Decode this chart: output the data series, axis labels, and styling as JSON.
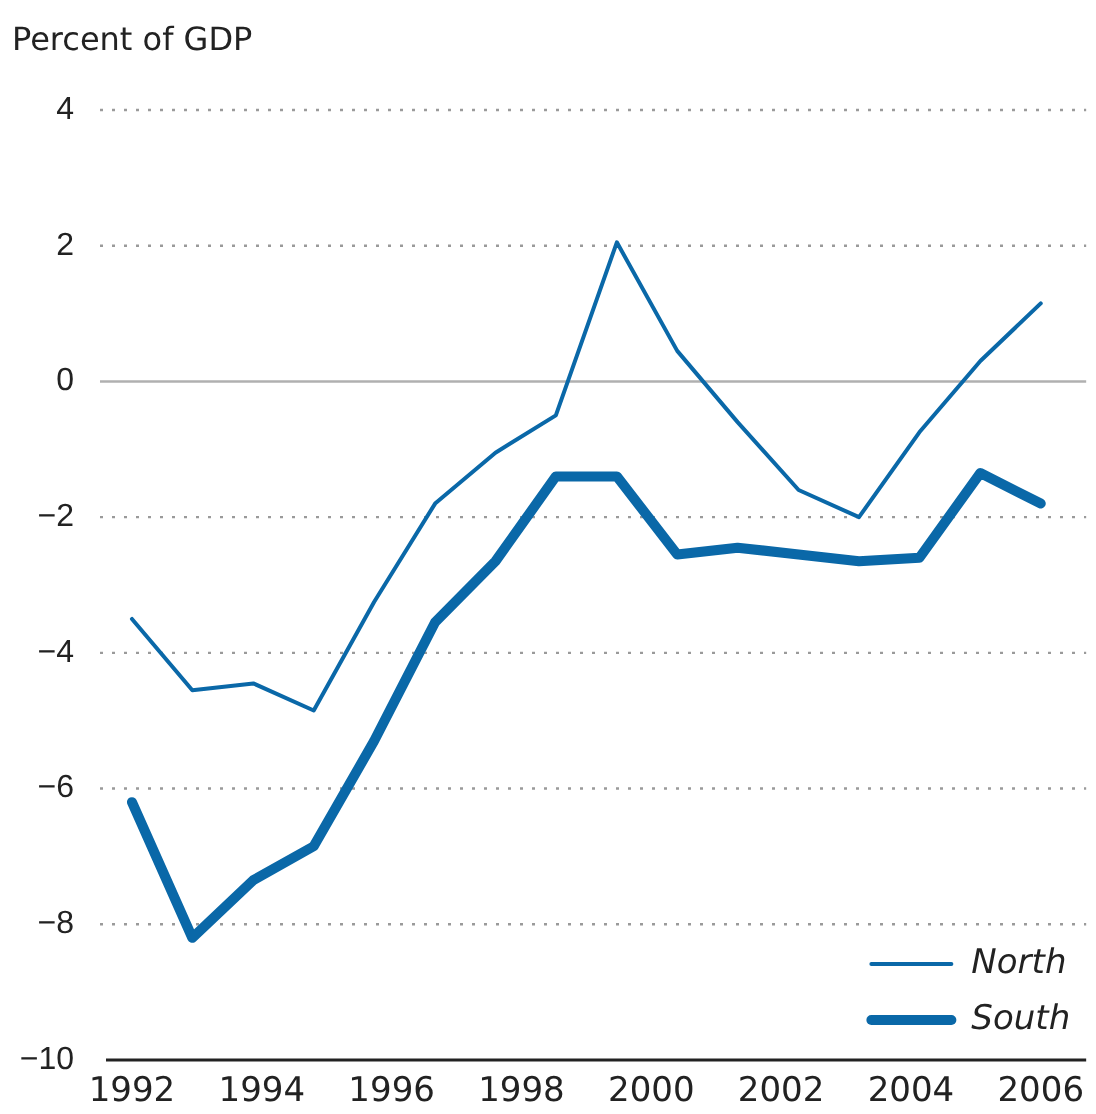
{
  "chart_data": {
    "type": "line",
    "ylabel": "Percent of GDP",
    "x": [
      1992,
      1992.93,
      1993.87,
      1994.8,
      1995.73,
      1996.67,
      1997.6,
      1998.53,
      1999.47,
      2000.4,
      2001.33,
      2002.27,
      2003.2,
      2004.13,
      2005.07,
      2006
    ],
    "series": [
      {
        "name": "North",
        "color": "#0a68a8",
        "values": [
          -3.5,
          -4.55,
          -4.45,
          -4.85,
          -3.25,
          -1.8,
          -1.05,
          -0.5,
          2.05,
          0.45,
          -0.6,
          -1.6,
          -2.0,
          -0.75,
          0.3,
          1.15
        ]
      },
      {
        "name": "South",
        "color": "#0a68a8",
        "values": [
          -6.2,
          -8.2,
          -7.35,
          -6.85,
          -5.3,
          -3.55,
          -2.65,
          -1.4,
          -1.4,
          -2.55,
          -2.45,
          -2.55,
          -2.65,
          -2.6,
          -1.35,
          -1.8
        ]
      }
    ],
    "xlim": [
      1991.6,
      2006.7
    ],
    "xticks": [
      1992,
      1994,
      1996,
      1998,
      2000,
      2002,
      2004,
      2006
    ],
    "ylim": [
      -10,
      4
    ],
    "yticks": [
      -10,
      -8,
      -6,
      -4,
      -2,
      0,
      2,
      4
    ],
    "grid": "y",
    "legend": "bottom right",
    "marker": "none",
    "line_style": "solid"
  }
}
